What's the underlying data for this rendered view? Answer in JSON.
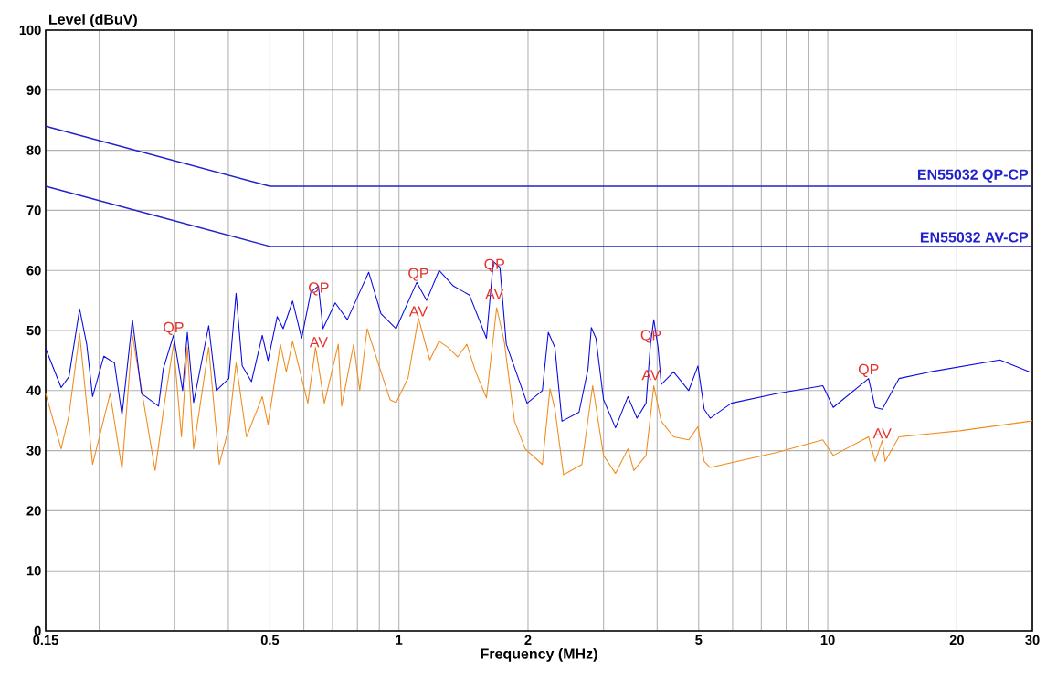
{
  "chart_data": {
    "type": "line",
    "xlabel": "Frequency (MHz)",
    "ylabel": "Level (dBuV)",
    "log": "x",
    "grid": true,
    "xlim": [
      0.15,
      30
    ],
    "ylim": [
      0,
      100
    ],
    "xticks": [
      0.15,
      {
        "value": 0.2,
        "label": null
      },
      {
        "value": 0.3,
        "label": null
      },
      {
        "value": 0.4,
        "label": null
      },
      0.5,
      {
        "value": 0.6,
        "label": null
      },
      {
        "value": 0.7,
        "label": null
      },
      {
        "value": 0.8,
        "label": null
      },
      {
        "value": 0.9,
        "label": null
      },
      1,
      2,
      {
        "value": 3,
        "label": null
      },
      {
        "value": 4,
        "label": null
      },
      5,
      {
        "value": 6,
        "label": null
      },
      {
        "value": 7,
        "label": null
      },
      {
        "value": 8,
        "label": null
      },
      {
        "value": 9,
        "label": null
      },
      10,
      20,
      30
    ],
    "yticks": [
      0,
      10,
      20,
      30,
      40,
      50,
      60,
      70,
      80,
      90,
      100
    ],
    "series": [
      {
        "name": "EN55032 QP-CP",
        "color": "#2222cc",
        "x": [
          0.15,
          0.5,
          30
        ],
        "values": [
          84,
          74,
          74
        ]
      },
      {
        "name": "EN55032 AV-CP",
        "color": "#2222cc",
        "x": [
          0.15,
          0.5,
          30
        ],
        "values": [
          74,
          64,
          64
        ]
      },
      {
        "color": "#f08c1e",
        "x": [
          0.15,
          0.158,
          0.163,
          0.17,
          0.18,
          0.193,
          0.212,
          0.226,
          0.239,
          0.27,
          0.284,
          0.298,
          0.311,
          0.321,
          0.332,
          0.36,
          0.381,
          0.401,
          0.417,
          0.441,
          0.48,
          0.495,
          0.529,
          0.546,
          0.565,
          0.613,
          0.639,
          0.67,
          0.722,
          0.735,
          0.784,
          0.81,
          0.843,
          0.908,
          0.953,
          0.985,
          1.05,
          1.11,
          1.18,
          1.24,
          1.3,
          1.37,
          1.44,
          1.51,
          1.6,
          1.69,
          1.76,
          1.86,
          1.97,
          2.16,
          2.25,
          2.31,
          2.42,
          2.67,
          2.83,
          3.0,
          3.2,
          3.42,
          3.53,
          3.77,
          3.93,
          4.09,
          4.37,
          4.74,
          4.98,
          5.15,
          5.32,
          7.62,
          9.74,
          10.3,
          12.45,
          12.9,
          13.4,
          13.6,
          14.66,
          20.3,
          29.6,
          30
        ],
        "values": [
          39.5,
          33.8,
          30.3,
          35.9,
          49.5,
          27.7,
          39.5,
          26.9,
          49.2,
          26.7,
          38,
          47.7,
          32.3,
          47.2,
          30.3,
          47.2,
          27.7,
          33.8,
          44.6,
          32.3,
          39,
          34.4,
          47.7,
          43.1,
          48.2,
          37.9,
          47.2,
          37.9,
          47.7,
          37.4,
          47.7,
          40,
          50.3,
          43.1,
          38.5,
          38,
          42.1,
          52.1,
          45.1,
          48.2,
          47.2,
          45.6,
          47.7,
          43.1,
          38.8,
          53.8,
          48.2,
          34.9,
          30.3,
          27.7,
          40.3,
          37,
          26,
          27.7,
          40.8,
          29.2,
          26.2,
          30.3,
          26.7,
          29.2,
          40.8,
          34.9,
          32.3,
          31.8,
          34,
          28.2,
          27.2,
          29.7,
          31.8,
          29.2,
          32.3,
          28.2,
          31.7,
          28.2,
          32.3,
          33.3,
          34.9,
          35
        ]
      },
      {
        "color": "#0a0ae0",
        "x": [
          0.15,
          0.163,
          0.17,
          0.18,
          0.187,
          0.193,
          0.205,
          0.217,
          0.226,
          0.239,
          0.251,
          0.275,
          0.282,
          0.298,
          0.313,
          0.321,
          0.332,
          0.36,
          0.375,
          0.401,
          0.417,
          0.431,
          0.453,
          0.48,
          0.495,
          0.52,
          0.537,
          0.565,
          0.593,
          0.623,
          0.649,
          0.665,
          0.71,
          0.758,
          0.81,
          0.85,
          0.908,
          0.985,
          1.1,
          1.16,
          1.24,
          1.34,
          1.46,
          1.6,
          1.66,
          1.72,
          1.78,
          1.99,
          2.16,
          2.23,
          2.31,
          2.4,
          2.63,
          2.76,
          2.81,
          2.88,
          3.0,
          3.2,
          3.42,
          3.59,
          3.77,
          3.86,
          3.93,
          4.02,
          4.09,
          4.37,
          4.74,
          4.98,
          5.15,
          5.32,
          5.96,
          7.62,
          9.74,
          10.3,
          12.45,
          12.9,
          13.4,
          14.66,
          17.3,
          25.2,
          29.6,
          30
        ],
        "values": [
          47,
          40.5,
          42.3,
          53.6,
          47.7,
          39,
          45.7,
          44.6,
          35.9,
          51.8,
          39.5,
          37.4,
          43.6,
          49.2,
          40,
          49.7,
          38,
          50.8,
          40,
          42,
          56.2,
          44.1,
          41.5,
          49.2,
          45,
          52.3,
          50.3,
          54.9,
          48.7,
          56.4,
          57.4,
          50.3,
          54.6,
          51.8,
          56.4,
          59.7,
          52.8,
          50.3,
          58,
          55,
          60,
          57.4,
          55.9,
          48.7,
          61.5,
          60.5,
          47.7,
          37.9,
          40,
          49.7,
          47.2,
          34.9,
          36.4,
          43.6,
          50.5,
          48.7,
          38.5,
          33.8,
          39,
          35.4,
          37.9,
          47.7,
          51.8,
          47.2,
          41,
          43.1,
          40,
          44.1,
          36.9,
          35.4,
          37.9,
          39.5,
          40.8,
          37.2,
          42,
          37.2,
          36.9,
          42,
          43.1,
          45.1,
          43.1,
          43
        ]
      }
    ],
    "annotations": [
      {
        "text": "QP",
        "x": 0.298,
        "y": 49
      },
      {
        "text": "QP",
        "x": 0.65,
        "y": 55.6
      },
      {
        "text": "AV",
        "x": 0.65,
        "y": 47
      },
      {
        "text": "QP",
        "x": 1.11,
        "y": 58
      },
      {
        "text": "AV",
        "x": 1.11,
        "y": 52.1
      },
      {
        "text": "QP",
        "x": 1.67,
        "y": 59.5
      },
      {
        "text": "AV",
        "x": 1.67,
        "y": 55
      },
      {
        "text": "QP",
        "x": 3.87,
        "y": 47.7
      },
      {
        "text": "AV",
        "x": 3.87,
        "y": 41.5
      },
      {
        "text": "QP",
        "x": 12.45,
        "y": 42
      },
      {
        "text": "AV",
        "x": 13.4,
        "y": 31.8
      }
    ]
  }
}
